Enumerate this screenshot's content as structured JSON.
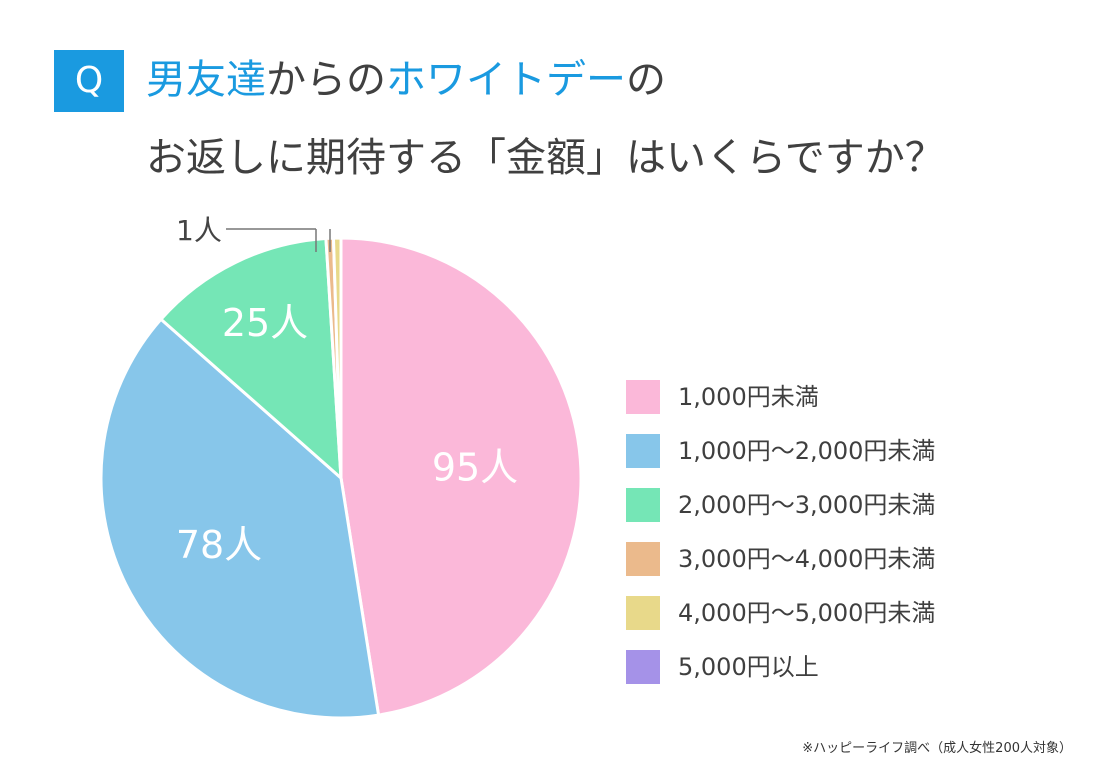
{
  "question": {
    "badge": "Q",
    "line1": [
      {
        "text": "男友達",
        "hl": true
      },
      {
        "text": "からの",
        "hl": false
      },
      {
        "text": "ホワイトデー",
        "hl": true
      },
      {
        "text": "の",
        "hl": false
      }
    ],
    "line2": "お返しに期待する「金額」はいくらですか？"
  },
  "chart_data": {
    "type": "pie",
    "title": "男友達からのホワイトデーのお返しに期待する「金額」はいくらですか？",
    "unit": "人",
    "categories": [
      "1,000円未満",
      "1,000円～2,000円未満",
      "2,000円～3,000円未満",
      "3,000円～4,000円未満",
      "4,000円～5,000円未満",
      "5,000円以上"
    ],
    "values": [
      95,
      78,
      25,
      1,
      1,
      0
    ],
    "colors": [
      "#fbb8d9",
      "#87c6ea",
      "#75e6b6",
      "#ebba8c",
      "#e8d98a",
      "#a592e8"
    ],
    "data_labels": [
      "95人",
      "78人",
      "25人",
      "",
      "",
      ""
    ],
    "callout_label": "1人",
    "legend": [
      "1,000円未満",
      "1,000円～2,000円未満",
      "2,000円～3,000円未満",
      "3,000円～4,000円未満",
      "4,000円～5,000円未満",
      "5,000円以上"
    ],
    "legend_position": "right"
  },
  "source_note": "※ハッピーライフ調べ（成人女性200人対象）"
}
